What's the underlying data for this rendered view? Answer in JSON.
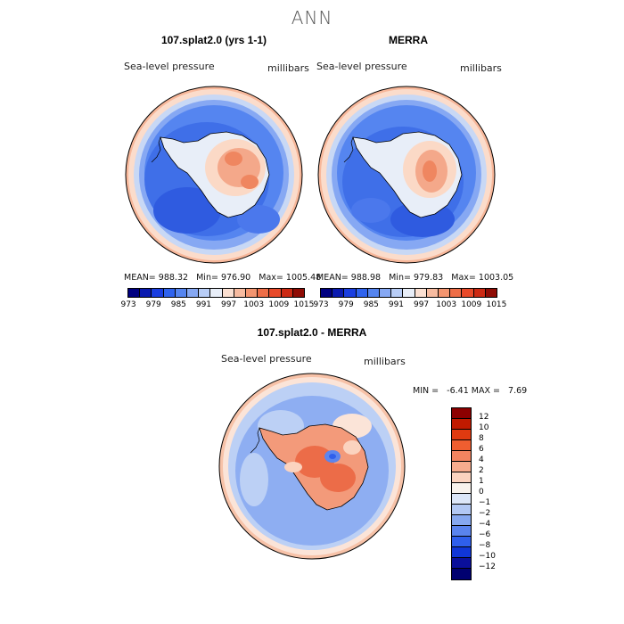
{
  "main_title": "ANN",
  "panels": {
    "left": {
      "title": "107.splat2.0 (yrs 1-1)",
      "variable": "Sea-level pressure",
      "units": "millibars",
      "mean_label": "MEAN=",
      "mean": "988.32",
      "min_label": "Min=",
      "min": "976.90",
      "max_label": "Max=",
      "max": "1005.48"
    },
    "right": {
      "title": "MERRA",
      "variable": "Sea-level pressure",
      "units": "millibars",
      "mean_label": "MEAN=",
      "mean": "988.98",
      "min_label": "Min=",
      "min": "979.83",
      "max_label": "Max=",
      "max": "1003.05"
    },
    "diff": {
      "title": "107.splat2.0 - MERRA",
      "variable": "Sea-level pressure",
      "units": "millibars",
      "min_label": "MIN =",
      "min": "-6.41",
      "max_label": "MAX =",
      "max": "7.69"
    }
  },
  "colorbar_abs": {
    "colors": [
      "#000080",
      "#0a1ab0",
      "#1a3ee0",
      "#2f63ee",
      "#5585f0",
      "#86a8f3",
      "#b8cdf6",
      "#e8eef8",
      "#fbe0d2",
      "#f7bba0",
      "#f39570",
      "#ee6e48",
      "#e84a2a",
      "#cc2a14",
      "#8f0c05"
    ],
    "ticks": [
      "973",
      "979",
      "985",
      "991",
      "997",
      "1003",
      "1009",
      "1015"
    ]
  },
  "colorbar_diff": {
    "colors": [
      "#8c0000",
      "#c01a00",
      "#e03a10",
      "#ef5e30",
      "#f38460",
      "#f7ac8e",
      "#fbd3bf",
      "#f8f2ec",
      "#dce6f8",
      "#b2c8f4",
      "#86a8f0",
      "#5a84ee",
      "#2f5fec",
      "#1036d6",
      "#0a0f9a",
      "#000070"
    ],
    "ticks": [
      "12",
      "10",
      "8",
      "6",
      "4",
      "2",
      "1",
      "0",
      "−1",
      "−2",
      "−4",
      "−6",
      "−8",
      "−10",
      "−12"
    ]
  },
  "map_palette": {
    "outer_abs": "#f7b79a",
    "ring_abs_1": "#fbdccb",
    "ring_abs_2": "#c8d8f5",
    "ring_abs_3": "#86a8f3",
    "ocean_abs": "#3f6fe8",
    "ocean_abs_deep": "#2f5be0",
    "coast_abs": "#e8eef8",
    "land_abs_1": "#fbd9c6",
    "land_abs_2": "#f4a88a",
    "land_abs_3": "#ef8660",
    "diff_ocean": "#8eaef2",
    "diff_outer": "#fbe4d8",
    "diff_ring": "#bcd0f5",
    "diff_land_1": "#f39a7a",
    "diff_land_2": "#ec6c48",
    "diff_blue": "#5c85ee"
  }
}
